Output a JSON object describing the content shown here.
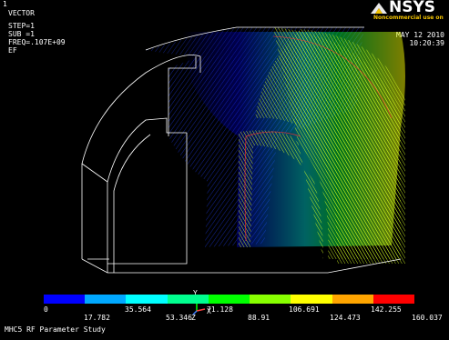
{
  "window_number": "1",
  "plot_type": "VECTOR",
  "step_lines": [
    "STEP=1",
    "SUB =1",
    "FREQ=.107E+09",
    "EF"
  ],
  "logo": {
    "word": "NSYS",
    "sub": "Noncommercial use on"
  },
  "date": "MAY 12 2010",
  "time": "10:20:39",
  "axis_triad": {
    "y_label": "Y",
    "z_label": "Z",
    "x_label": "X"
  },
  "legend": {
    "colors": [
      "#0000ff",
      "#00a8ff",
      "#00ffff",
      "#00ff8f",
      "#00ff00",
      "#88ff00",
      "#ffff00",
      "#ffa500",
      "#ff0000"
    ],
    "top_labels": [
      "0",
      "35.564",
      "71.128",
      "106.691",
      "142.255"
    ],
    "bottom_labels": [
      "17.782",
      "53.346",
      "88.91",
      "124.473",
      "160.037"
    ]
  },
  "title": "MHC5 RF Parameter Study"
}
